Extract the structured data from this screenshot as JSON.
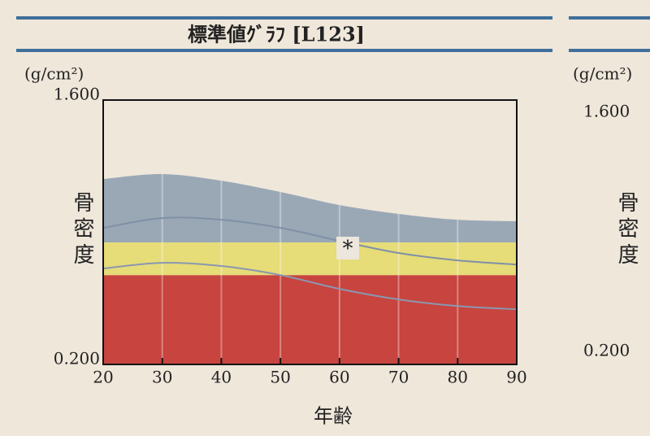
{
  "chart_data": {
    "type": "band-line",
    "title": "標準値ｸﾞﾗﾌ [L123]",
    "unit": "(g/cm²)",
    "y_label": "骨密度",
    "x_label": "年齢",
    "x": [
      20,
      30,
      40,
      50,
      60,
      70,
      80,
      90
    ],
    "xlim": [
      20,
      90
    ],
    "xticks": [
      20,
      30,
      40,
      50,
      60,
      70,
      80,
      90
    ],
    "ylim": [
      0.2,
      1.6
    ],
    "yticks": [
      {
        "value": 0.2,
        "label": "0.200"
      },
      {
        "value": 1.6,
        "label": "1.600"
      }
    ],
    "grid": true,
    "bands": [
      {
        "lower": 0.2,
        "upper": 0.673,
        "color": "#c8443f"
      },
      {
        "lower": 0.673,
        "upper": 0.846,
        "color": "#e6dc78"
      }
    ],
    "area": {
      "color": "#9aa8b6",
      "values": [
        1.182,
        1.208,
        1.173,
        1.113,
        1.044,
        0.997,
        0.966,
        0.958
      ]
    },
    "series": [
      {
        "color": "#7f90a8",
        "values": [
          0.923,
          0.975,
          0.966,
          0.923,
          0.854,
          0.79,
          0.751,
          0.729
        ]
      },
      {
        "color": "#8a97b0",
        "values": [
          0.708,
          0.738,
          0.721,
          0.673,
          0.6,
          0.544,
          0.509,
          0.492
        ]
      }
    ],
    "marker": {
      "x": 61.4,
      "y": 0.816,
      "label": "*"
    }
  },
  "right_panel": {
    "unit": "(g/cm²)",
    "ytick_top": "1.600",
    "y_label": "骨密度",
    "ytick_bottom": "0.200"
  }
}
